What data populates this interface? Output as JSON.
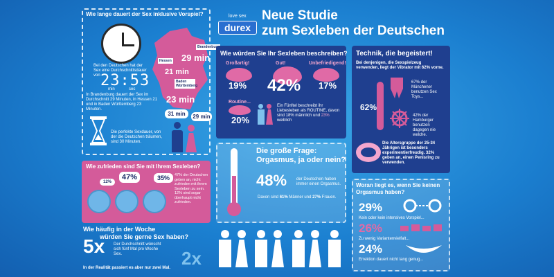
{
  "header": {
    "brand_small": "love sex",
    "brand": "durex",
    "title_line1": "Neue Studie",
    "title_line2": "zum Sexleben der Deutschen"
  },
  "duration": {
    "title": "Wie lange dauert der Sex inklusive Vorspiel?",
    "avg_text": "Bei den Deutschen hat der Sex eine Durchschnittsdauer von",
    "time_display": "23:53",
    "time_min_label": "min",
    "time_sec_label": "sec",
    "regions_text": "In Brandenburg dauert der Sex im Durchschnitt 29 Minuten, in Hessen 21 und in Baden Württemberg 23 Minuten.",
    "map_labels": {
      "brandenburg": "Brandenburg",
      "brandenburg_min": "29 min",
      "hessen": "Hessen",
      "hessen_min": "21 min",
      "bw": "Baden Württemberg",
      "bw_min": "23 min"
    },
    "ideal_text": "Die perfekte Sexdauer, von der die Deutschen träumen, sind 30 Minuten.",
    "male_min": "31 min",
    "female_min": "29 min"
  },
  "describe": {
    "title": "Wie würden Sie Ihr Sexleben beschreiben?",
    "items": [
      {
        "label": "Großartig!",
        "value": "19%"
      },
      {
        "label": "Gut!",
        "value": "42%"
      },
      {
        "label": "Unbefriedigend!",
        "value": "17%"
      },
      {
        "label": "Routine...",
        "value": "20%"
      }
    ],
    "routine_text": "Ein Fünftel beschreibt ihr Liebesleben als ROUTINE, davon sind 18% männlich und",
    "routine_highlight": "23%",
    "routine_tail": "weiblich"
  },
  "tech": {
    "title": "Technik, die begeistert!",
    "intro": "Bei denjenigen, die Sexspielzeug verwenden, liegt der Vibrator mit 62% vorne.",
    "vibrator_pct": "62%",
    "munich": "67% der Münchener benutzen Sex Toys...",
    "hamburg": "42% der Hamburger benutzen dagegen nie welche.",
    "age": "Die Altersgruppe der 25-34 Jährigen ist besonders experimentierfreudig. 32% geben an, einen Penisring zu verwenden."
  },
  "satisfied": {
    "title": "Wie zufrieden sind Sie mit Ihrem Sexleben?",
    "bubbles": [
      "12%",
      "47%",
      "35%"
    ],
    "text": "47% der Deutschen geben an, nicht zufrieden mit ihrem Sexleben zu sein. 12% sind sogar überhaupt nicht zufrieden."
  },
  "question": {
    "title_line1": "Die große Frage:",
    "title_line2": "Orgasmus, ja oder nein?",
    "big": "48%",
    "big_text": "der Deutschen haben immer einen Orgasmus.",
    "sub_text_a": "Davon sind",
    "men_pct": "61%",
    "sub_text_b": "Männer und",
    "women_pct": "27%",
    "sub_text_c": "Frauen."
  },
  "noorgasm": {
    "title": "Woran liegt es, wenn Sie keinen Orgasmus haben?",
    "items": [
      {
        "value": "29%",
        "text": "Kein oder kein intensives Vorspiel..."
      },
      {
        "value": "26%",
        "text": "Zu wenig Variantenvielfalt..."
      },
      {
        "value": "24%",
        "text": "Errektion dauert nicht lang genug..."
      }
    ]
  },
  "frequency": {
    "title_line1": "Wie häufig in der Woche",
    "title_line2": "würden Sie gerne Sex haben?",
    "big": "5x",
    "text": "Der Durchschnitt wünscht sich fünf Mal pro Woche Sex.",
    "reality": "In der Realität passiert es aber nur zwei Mal.",
    "actual": "2x"
  },
  "colors": {
    "pink": "#d45b9a",
    "navy": "#1f3f8f",
    "sky": "#1b7fd0"
  }
}
